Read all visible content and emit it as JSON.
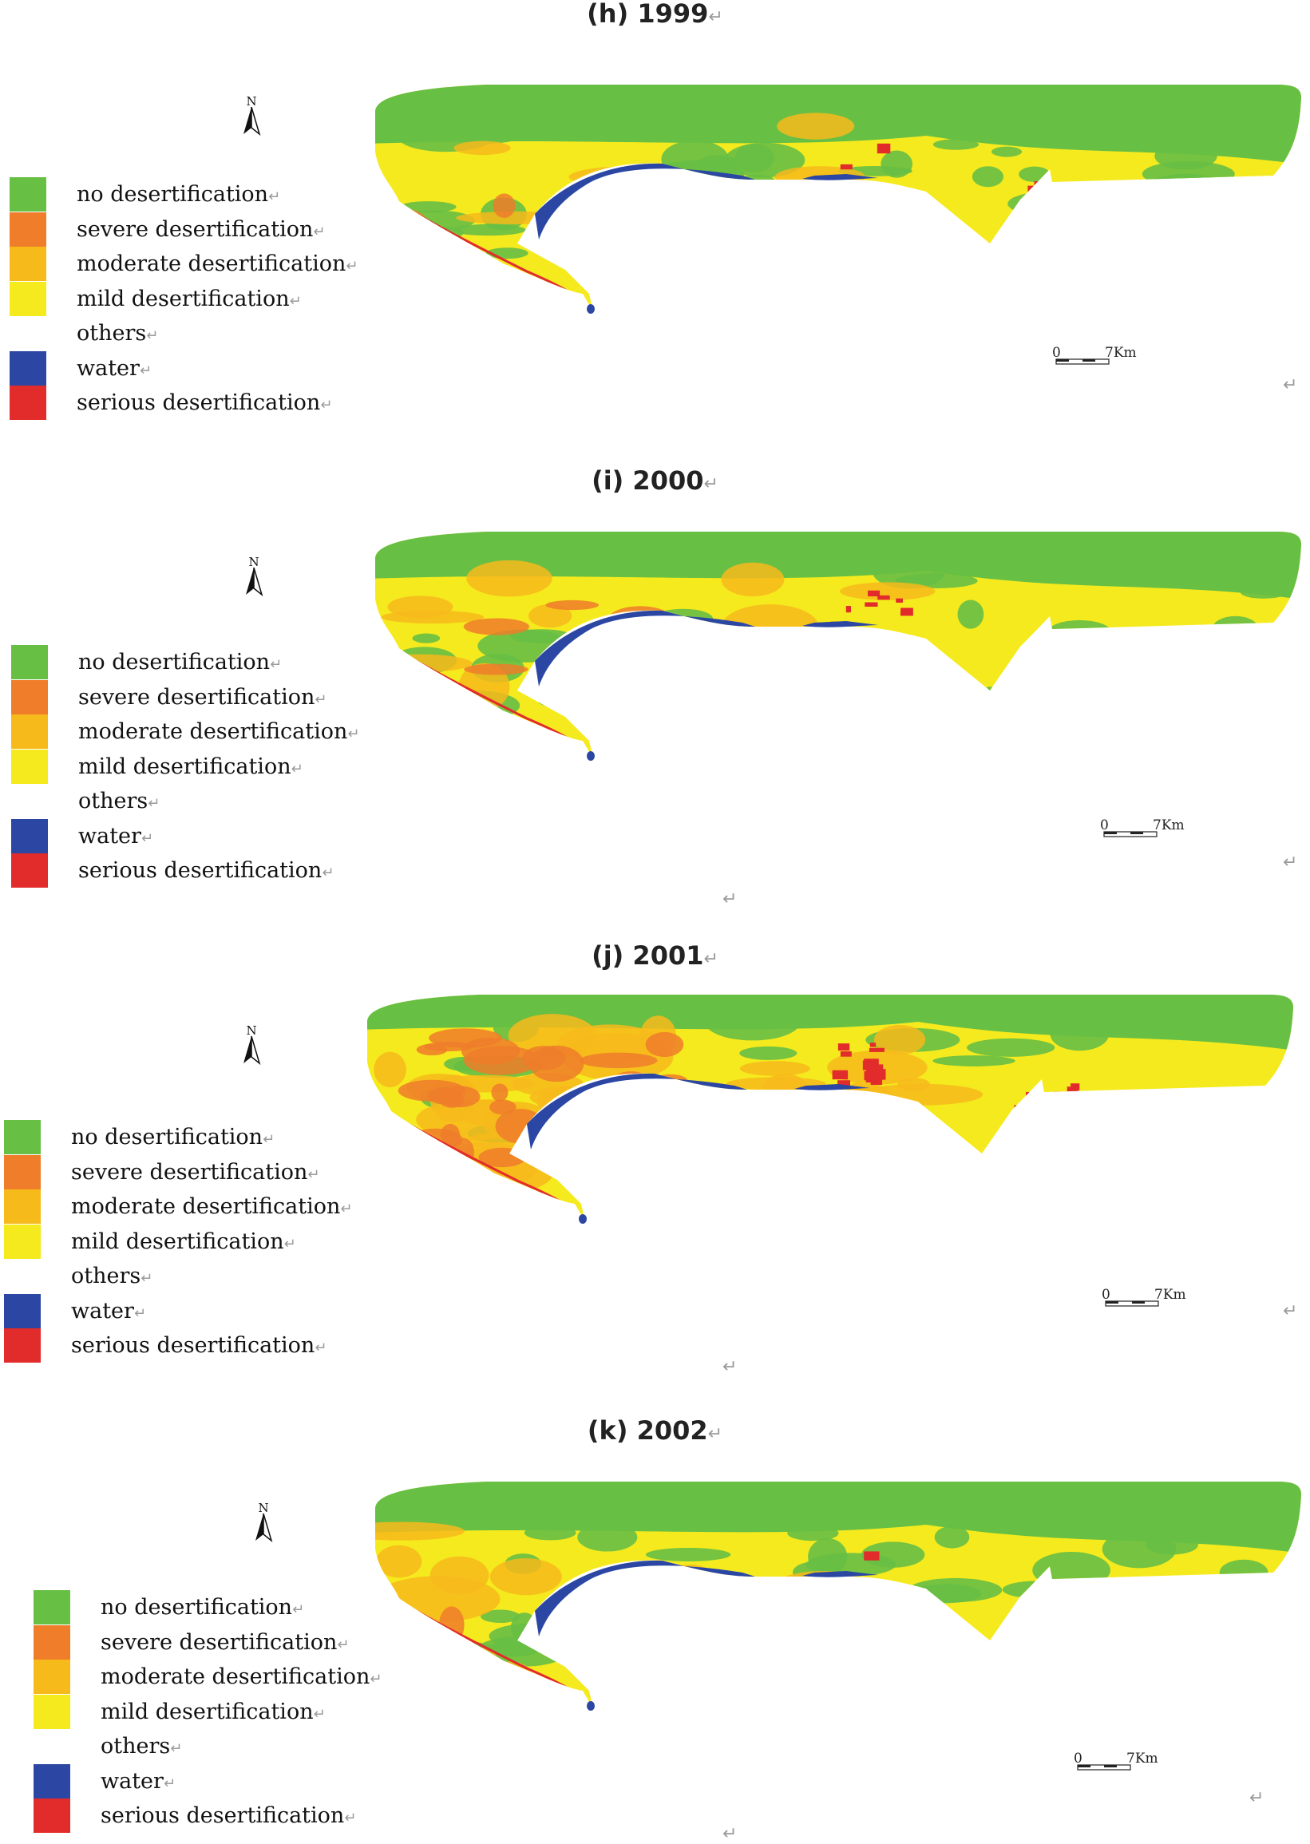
{
  "return_mark": "↵",
  "colors": {
    "no_desertification": "#67bf44",
    "severe_desertification": "#ef7d2a",
    "moderate_desertification": "#f7ba1b",
    "mild_desertification": "#f5ea1e",
    "water": "#2b47a3",
    "serious_desertification": "#e22b2b"
  },
  "panels": [
    {
      "title": "(h) 1999",
      "north": "N",
      "legend": [
        {
          "label": "no desertification",
          "color": "#67bf44"
        },
        {
          "label": "severe desertification",
          "color": "#ef7d2a"
        },
        {
          "label": "moderate desertification",
          "color": "#f7ba1b"
        },
        {
          "label": "mild desertification",
          "color": "#f5ea1e"
        },
        {
          "label": "others",
          "color": null
        },
        {
          "label": "water",
          "color": "#2b47a3"
        },
        {
          "label": "serious desertification",
          "color": "#e22b2b"
        }
      ],
      "scale": {
        "zero": "0",
        "km": "7Km"
      }
    },
    {
      "title": "(i) 2000",
      "north": "N",
      "legend": [
        {
          "label": "no desertification",
          "color": "#67bf44"
        },
        {
          "label": "severe desertification",
          "color": "#ef7d2a"
        },
        {
          "label": "moderate desertification",
          "color": "#f7ba1b"
        },
        {
          "label": "mild desertification",
          "color": "#f5ea1e"
        },
        {
          "label": "others",
          "color": null
        },
        {
          "label": "water",
          "color": "#2b47a3"
        },
        {
          "label": "serious desertification",
          "color": "#e22b2b"
        }
      ],
      "scale": {
        "zero": "0",
        "km": "7Km"
      }
    },
    {
      "title": "(j) 2001",
      "north": "N",
      "legend": [
        {
          "label": "no desertification",
          "color": "#67bf44"
        },
        {
          "label": "severe desertification",
          "color": "#ef7d2a"
        },
        {
          "label": "moderate desertification",
          "color": "#f7ba1b"
        },
        {
          "label": "mild desertification",
          "color": "#f5ea1e"
        },
        {
          "label": "others",
          "color": null
        },
        {
          "label": "water",
          "color": "#2b47a3"
        },
        {
          "label": "serious desertification",
          "color": "#e22b2b"
        }
      ],
      "scale": {
        "zero": "0",
        "km": "7Km"
      }
    },
    {
      "title": "(k) 2002",
      "north": "N",
      "legend": [
        {
          "label": "no desertification",
          "color": "#67bf44"
        },
        {
          "label": "severe desertification",
          "color": "#ef7d2a"
        },
        {
          "label": "moderate desertification",
          "color": "#f7ba1b"
        },
        {
          "label": "mild desertification",
          "color": "#f5ea1e"
        },
        {
          "label": "others",
          "color": null
        },
        {
          "label": "water",
          "color": "#2b47a3"
        },
        {
          "label": "serious desertification",
          "color": "#e22b2b"
        }
      ],
      "scale": {
        "zero": "0",
        "km": "7Km"
      }
    }
  ]
}
